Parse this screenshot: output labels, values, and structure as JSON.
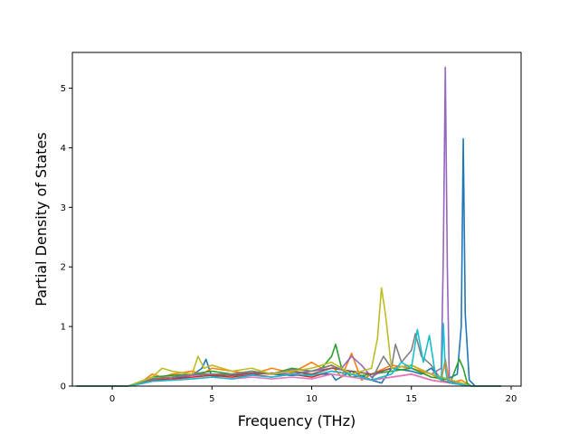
{
  "chart_data": {
    "type": "line",
    "title": "",
    "xlabel": "Frequency (THz)",
    "ylabel": "Partial Density of States",
    "xlim": [
      -2.0,
      20.5
    ],
    "ylim": [
      0,
      5.6
    ],
    "xticks": [
      0,
      5,
      10,
      15,
      20
    ],
    "yticks": [
      0,
      1,
      2,
      3,
      4,
      5
    ],
    "grid": false,
    "legend": "none",
    "colors": [
      "#1f77b4",
      "#ff7f0e",
      "#2ca02c",
      "#d62728",
      "#9467bd",
      "#8c564b",
      "#e377c2",
      "#7f7f7f",
      "#bcbd22",
      "#17becf"
    ],
    "series": [
      {
        "x": [
          -1.8,
          0.8,
          1.6,
          2.0,
          2.5,
          3.0,
          4.0,
          4.5,
          4.7,
          5.0,
          6.0,
          7.0,
          8.0,
          9.0,
          10.0,
          11.0,
          11.2,
          12.0,
          13.0,
          13.5,
          14.0,
          15.0,
          15.5,
          16.0,
          16.5,
          17.0,
          17.3,
          17.5,
          17.6,
          17.7,
          17.9,
          18.2,
          19.5
        ],
        "y": [
          0,
          0,
          0.08,
          0.12,
          0.1,
          0.12,
          0.18,
          0.3,
          0.45,
          0.15,
          0.2,
          0.25,
          0.2,
          0.18,
          0.2,
          0.2,
          0.1,
          0.25,
          0.1,
          0.05,
          0.3,
          0.25,
          0.2,
          0.3,
          0.1,
          0.15,
          0.2,
          1.0,
          4.15,
          1.2,
          0.1,
          0,
          0
        ]
      },
      {
        "x": [
          -1.8,
          0.8,
          1.6,
          2.0,
          2.5,
          3.0,
          4.0,
          4.5,
          5.0,
          6.0,
          7.0,
          8.0,
          9.0,
          10.0,
          10.5,
          11.0,
          11.5,
          12.0,
          12.5,
          13.0,
          14.0,
          15.0,
          16.0,
          16.5,
          16.7,
          16.9,
          17.5,
          18.0,
          19.5
        ],
        "y": [
          0,
          0,
          0.1,
          0.2,
          0.15,
          0.2,
          0.25,
          0.2,
          0.3,
          0.25,
          0.2,
          0.3,
          0.22,
          0.4,
          0.3,
          0.35,
          0.15,
          0.55,
          0.1,
          0.2,
          0.35,
          0.3,
          0.2,
          0.1,
          0.45,
          0.05,
          0.1,
          0,
          0
        ]
      },
      {
        "x": [
          -1.8,
          0.8,
          1.6,
          2.0,
          3.0,
          4.0,
          5.0,
          6.0,
          7.0,
          8.0,
          9.0,
          10.0,
          10.5,
          11.0,
          11.2,
          11.5,
          12.0,
          13.0,
          14.0,
          15.0,
          16.0,
          17.0,
          17.4,
          17.6,
          17.8,
          18.0,
          19.5
        ],
        "y": [
          0,
          0,
          0.1,
          0.15,
          0.18,
          0.2,
          0.25,
          0.2,
          0.25,
          0.2,
          0.3,
          0.25,
          0.3,
          0.5,
          0.7,
          0.3,
          0.15,
          0.2,
          0.25,
          0.3,
          0.15,
          0.1,
          0.45,
          0.3,
          0.05,
          0,
          0
        ]
      },
      {
        "x": [
          -1.8,
          0.8,
          1.6,
          2.0,
          3.0,
          4.0,
          5.0,
          6.0,
          7.0,
          8.0,
          9.0,
          10.0,
          11.0,
          12.0,
          13.0,
          14.0,
          15.0,
          16.0,
          17.0,
          18.0,
          19.5
        ],
        "y": [
          0,
          0,
          0.06,
          0.1,
          0.12,
          0.15,
          0.18,
          0.15,
          0.2,
          0.15,
          0.2,
          0.15,
          0.25,
          0.2,
          0.1,
          0.15,
          0.2,
          0.1,
          0.05,
          0,
          0
        ]
      },
      {
        "x": [
          -1.8,
          0.8,
          1.6,
          2.0,
          3.0,
          4.0,
          5.0,
          6.0,
          7.0,
          8.0,
          9.0,
          10.0,
          11.0,
          11.5,
          12.0,
          12.5,
          13.0,
          13.5,
          14.0,
          15.0,
          16.0,
          16.5,
          16.6,
          16.7,
          16.8,
          16.9,
          17.2,
          18.0,
          19.5
        ],
        "y": [
          0,
          0,
          0.08,
          0.12,
          0.15,
          0.18,
          0.2,
          0.18,
          0.2,
          0.22,
          0.2,
          0.25,
          0.3,
          0.3,
          0.5,
          0.35,
          0.15,
          0.25,
          0.3,
          0.35,
          0.2,
          0.3,
          2.2,
          5.35,
          2.0,
          0.1,
          0.05,
          0,
          0
        ]
      },
      {
        "x": [
          -1.8,
          0.8,
          1.6,
          2.0,
          3.0,
          4.0,
          5.0,
          6.0,
          7.0,
          8.0,
          9.0,
          10.0,
          11.0,
          12.0,
          13.0,
          14.0,
          15.0,
          16.0,
          17.0,
          18.0,
          19.5
        ],
        "y": [
          0,
          0,
          0.07,
          0.12,
          0.15,
          0.2,
          0.2,
          0.18,
          0.22,
          0.2,
          0.25,
          0.2,
          0.3,
          0.25,
          0.2,
          0.3,
          0.35,
          0.2,
          0.1,
          0,
          0
        ]
      },
      {
        "x": [
          -1.8,
          0.8,
          1.6,
          2.0,
          3.0,
          4.0,
          5.0,
          6.0,
          7.0,
          8.0,
          9.0,
          10.0,
          11.0,
          12.0,
          13.0,
          14.0,
          15.0,
          16.0,
          17.0,
          18.0,
          19.5
        ],
        "y": [
          0,
          0,
          0.05,
          0.08,
          0.1,
          0.12,
          0.15,
          0.12,
          0.15,
          0.12,
          0.15,
          0.12,
          0.2,
          0.15,
          0.1,
          0.15,
          0.2,
          0.1,
          0.05,
          0,
          0
        ]
      },
      {
        "x": [
          -1.8,
          0.8,
          1.6,
          2.0,
          3.0,
          4.0,
          5.0,
          6.0,
          7.0,
          8.0,
          9.0,
          10.0,
          11.0,
          12.0,
          13.0,
          13.6,
          14.0,
          14.2,
          14.5,
          15.0,
          15.2,
          15.5,
          16.0,
          16.5,
          17.0,
          18.0,
          19.5
        ],
        "y": [
          0,
          0,
          0.08,
          0.12,
          0.15,
          0.2,
          0.2,
          0.2,
          0.25,
          0.2,
          0.28,
          0.25,
          0.35,
          0.2,
          0.1,
          0.5,
          0.3,
          0.7,
          0.4,
          0.6,
          0.88,
          0.5,
          0.35,
          0.1,
          0.05,
          0,
          0
        ]
      },
      {
        "x": [
          -1.8,
          0.8,
          1.6,
          2.0,
          2.5,
          3.0,
          4.0,
          4.3,
          4.6,
          5.0,
          6.0,
          7.0,
          8.0,
          9.0,
          10.0,
          11.0,
          12.0,
          13.0,
          13.3,
          13.5,
          13.7,
          14.0,
          15.0,
          16.0,
          17.0,
          18.0,
          19.5
        ],
        "y": [
          0,
          0,
          0.1,
          0.15,
          0.3,
          0.25,
          0.2,
          0.5,
          0.3,
          0.35,
          0.25,
          0.3,
          0.2,
          0.25,
          0.3,
          0.4,
          0.2,
          0.3,
          0.8,
          1.65,
          1.2,
          0.3,
          0.35,
          0.2,
          0.1,
          0,
          0
        ]
      },
      {
        "x": [
          -1.8,
          0.8,
          1.6,
          2.0,
          3.0,
          4.0,
          5.0,
          6.0,
          7.0,
          8.0,
          9.0,
          10.0,
          11.0,
          12.0,
          13.0,
          14.0,
          14.5,
          15.0,
          15.3,
          15.6,
          15.9,
          16.2,
          16.5,
          16.6,
          16.7,
          16.8,
          17.0,
          18.0,
          19.5
        ],
        "y": [
          0,
          0,
          0.05,
          0.08,
          0.1,
          0.12,
          0.15,
          0.12,
          0.18,
          0.15,
          0.2,
          0.18,
          0.25,
          0.2,
          0.1,
          0.2,
          0.4,
          0.3,
          0.95,
          0.4,
          0.85,
          0.2,
          0.1,
          1.05,
          0.3,
          0.1,
          0.05,
          0,
          0
        ]
      }
    ]
  }
}
